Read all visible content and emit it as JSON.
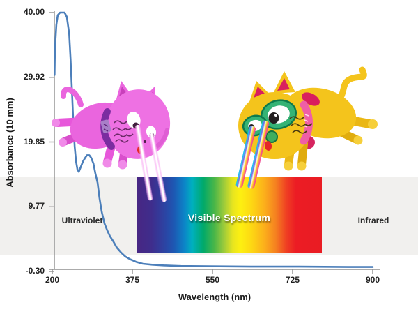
{
  "figure": {
    "background_color": "#ffffff",
    "band_color": "#f1f0ee",
    "curve_color": "#4c7fba",
    "axis_color": "#8f8f8f"
  },
  "axes": {
    "y_title": "Absorbance (10 mm)",
    "x_title": "Wavelength (nm)"
  },
  "regions": {
    "ultraviolet": "Ultraviolet",
    "visible": "Visible Spectrum",
    "infrared": "Infrared"
  },
  "chart_data": {
    "type": "line",
    "title": "",
    "xlabel": "Wavelength (nm)",
    "ylabel": "Absorbance (10 mm)",
    "xlim": [
      200,
      900
    ],
    "ylim": [
      -0.3,
      40.0
    ],
    "grid": false,
    "x_ticks": [
      200,
      375,
      550,
      725,
      900
    ],
    "x_tick_labels": [
      "200",
      "375",
      "550",
      "725",
      "900"
    ],
    "y_ticks": [
      40.0,
      29.92,
      19.85,
      9.77,
      -0.3
    ],
    "y_tick_labels": [
      "40.00",
      "29.92",
      "19.85",
      "9.77",
      "-0.30"
    ],
    "series": [
      {
        "name": "Absorbance",
        "color": "#4c7fba",
        "points": [
          [
            205,
            30.3
          ],
          [
            206,
            34.4
          ],
          [
            209,
            38.1
          ],
          [
            212,
            39.6
          ],
          [
            217,
            40.0
          ],
          [
            227,
            40.0
          ],
          [
            232,
            39.3
          ],
          [
            237,
            36.7
          ],
          [
            240,
            32.7
          ],
          [
            243,
            27.8
          ],
          [
            246,
            22.9
          ],
          [
            249,
            19.1
          ],
          [
            252,
            16.8
          ],
          [
            255,
            15.6
          ],
          [
            258,
            15.2
          ],
          [
            262,
            15.9
          ],
          [
            267,
            16.8
          ],
          [
            272,
            17.4
          ],
          [
            276,
            17.8
          ],
          [
            281,
            17.8
          ],
          [
            285,
            17.4
          ],
          [
            290,
            16.5
          ],
          [
            294,
            15.0
          ],
          [
            299,
            13.5
          ],
          [
            303,
            11.2
          ],
          [
            308,
            9.0
          ],
          [
            314,
            7.2
          ],
          [
            320,
            6.1
          ],
          [
            326,
            5.2
          ],
          [
            334,
            4.3
          ],
          [
            341,
            3.4
          ],
          [
            351,
            2.6
          ],
          [
            360,
            2.0
          ],
          [
            370,
            1.6
          ],
          [
            383,
            1.2
          ],
          [
            398,
            0.9
          ],
          [
            418,
            0.75
          ],
          [
            443,
            0.65
          ],
          [
            481,
            0.55
          ],
          [
            542,
            0.5
          ],
          [
            634,
            0.45
          ],
          [
            740,
            0.45
          ],
          [
            847,
            0.4
          ],
          [
            900,
            0.4
          ]
        ]
      }
    ],
    "annotations": [
      {
        "text": "Ultraviolet",
        "x_nm": 265,
        "y": 7.6
      },
      {
        "text": "Visible Spectrum",
        "x_nm": 584,
        "y": 7.6
      },
      {
        "text": "Infrared",
        "x_nm": 900,
        "y": 7.6
      }
    ],
    "visible_spectrum_band_nm": [
      384,
      789
    ]
  }
}
